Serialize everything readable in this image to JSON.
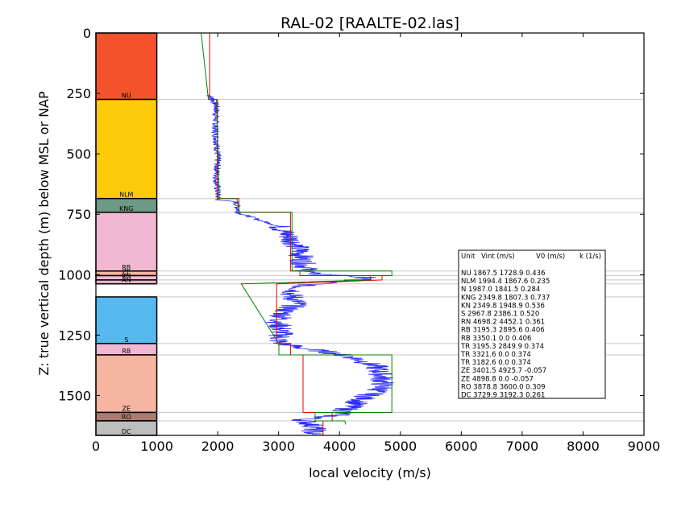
{
  "chart_data": {
    "type": "line",
    "title": "RAL-02 [RAALTE-02.las]",
    "xlabel": "local velocity (m/s)",
    "ylabel": "Z: true vertical depth (m) below MSL or NAP",
    "xlim": [
      0,
      9000
    ],
    "ylim": [
      1665,
      0
    ],
    "x_ticks": [
      "0",
      "1000",
      "2000",
      "3000",
      "4000",
      "5000",
      "6000",
      "7000",
      "8000",
      "9000"
    ],
    "y_ticks": [
      "0",
      "250",
      "500",
      "750",
      "1000",
      "1250",
      "1500"
    ],
    "y_tick_values": [
      0,
      250,
      500,
      750,
      1000,
      1250,
      1500
    ],
    "column_x_range": [
      0,
      1000
    ],
    "stratigraphic_units": [
      {
        "name": "NU",
        "top": 0,
        "base": 275,
        "color": "#f4522a"
      },
      {
        "name": "NLM",
        "top": 275,
        "base": 685,
        "color": "#fecb0a"
      },
      {
        "name": "KNG",
        "top": 685,
        "base": 742,
        "color": "#6d9a85"
      },
      {
        "name": "RB",
        "top": 742,
        "base": 985,
        "color": "#f2b8d3"
      },
      {
        "name": "ZE",
        "top": 985,
        "base": 1004,
        "color": "#f5b5a0"
      },
      {
        "name": "RN",
        "top": 1004,
        "base": 1022,
        "color": "#f2b8d3"
      },
      {
        "name": "AN",
        "top": 1022,
        "base": 1038,
        "color": "#e8b0c8"
      },
      {
        "name": "S",
        "top": 1092,
        "base": 1285,
        "color": "#56b9ef"
      },
      {
        "name": "RB",
        "top": 1285,
        "base": 1332,
        "color": "#f2b8d3"
      },
      {
        "name": "ZE",
        "top": 1332,
        "base": 1570,
        "color": "#f5b5a0"
      },
      {
        "name": "RO",
        "top": 1570,
        "base": 1605,
        "color": "#b07a70"
      },
      {
        "name": "DC",
        "top": 1605,
        "base": 1665,
        "color": "#bdbdbd"
      }
    ],
    "boundary_depths": [
      275,
      685,
      742,
      985,
      1004,
      1022,
      1038,
      1092,
      1285,
      1332,
      1570,
      1605
    ],
    "series": [
      {
        "color": "#2b2bff",
        "kind": "log",
        "points": [
          [
            1860,
            255
          ],
          [
            1980,
            300
          ],
          [
            1960,
            400
          ],
          [
            1990,
            470
          ],
          [
            2000,
            520
          ],
          [
            1980,
            600
          ],
          [
            2010,
            690
          ],
          [
            2300,
            700
          ],
          [
            2350,
            745
          ],
          [
            2700,
            775
          ],
          [
            3000,
            800
          ],
          [
            3200,
            850
          ],
          [
            3350,
            900
          ],
          [
            3400,
            950
          ],
          [
            3500,
            995
          ],
          [
            3800,
            1000
          ],
          [
            4200,
            1005
          ],
          [
            4500,
            1015
          ],
          [
            4200,
            1022
          ],
          [
            3400,
            1045
          ],
          [
            3200,
            1080
          ],
          [
            3300,
            1120
          ],
          [
            3100,
            1150
          ],
          [
            3000,
            1200
          ],
          [
            3050,
            1240
          ],
          [
            3000,
            1280
          ],
          [
            3300,
            1300
          ],
          [
            3800,
            1320
          ],
          [
            4200,
            1340
          ],
          [
            4600,
            1380
          ],
          [
            4700,
            1420
          ],
          [
            4700,
            1470
          ],
          [
            4400,
            1510
          ],
          [
            4100,
            1560
          ],
          [
            4000,
            1580
          ],
          [
            3400,
            1600
          ],
          [
            3600,
            1630
          ],
          [
            3550,
            1660
          ]
        ]
      },
      {
        "color": "#e00000",
        "kind": "interval velocity",
        "points": [
          [
            1867.5,
            0
          ],
          [
            1867.5,
            275
          ],
          [
            1994.4,
            275
          ],
          [
            1994.4,
            685
          ],
          [
            2349.8,
            685
          ],
          [
            2349.8,
            742
          ],
          [
            3195.3,
            742
          ],
          [
            3195.3,
            985
          ],
          [
            3350.1,
            985
          ],
          [
            3350.1,
            1004
          ],
          [
            4698.2,
            1004
          ],
          [
            4698.2,
            1022
          ],
          [
            2967.8,
            1038
          ],
          [
            2967.8,
            1285
          ],
          [
            3195.3,
            1285
          ],
          [
            3195.3,
            1332
          ],
          [
            3401.5,
            1332
          ],
          [
            3401.5,
            1570
          ],
          [
            3878.8,
            1570
          ],
          [
            3878.8,
            1605
          ],
          [
            3729.9,
            1605
          ],
          [
            3729.9,
            1665
          ]
        ]
      },
      {
        "color": "#008000",
        "kind": "linear velocity model",
        "points": [
          [
            1728.9,
            0
          ],
          [
            1848,
            275
          ],
          [
            1980,
            275
          ],
          [
            2025,
            685
          ],
          [
            2313,
            685
          ],
          [
            2355,
            742
          ],
          [
            3220,
            742
          ],
          [
            3220,
            985
          ],
          [
            4860,
            985
          ],
          [
            4860,
            1004
          ],
          [
            4500,
            1004
          ],
          [
            4513,
            1022
          ],
          [
            2386,
            1038
          ],
          [
            3005,
            1285
          ],
          [
            3005,
            1332
          ],
          [
            4860,
            1332
          ],
          [
            4860,
            1570
          ],
          [
            3600,
            1570
          ],
          [
            3600,
            1605
          ],
          [
            4090,
            1605
          ],
          [
            4100,
            1620
          ]
        ]
      }
    ],
    "legend": {
      "position": "right",
      "header": [
        "Unit",
        "Vint (m/s)",
        "V0 (m/s)",
        "k (1/s)"
      ],
      "rows": [
        "NU      1867.5   1728.9   0.436",
        "NLM      1994.4   1867.6   0.235",
        "N        1987.0   1841.5   0.284",
        "KNG      2349.8   1807.3   0.737",
        "KN       2349.8   1948.9   0.536",
        "S        2967.8   2386.1   0.520",
        "RN       4698.2   4452.1   0.361",
        "RB       3195.3   2895.6   0.406",
        "RB       3350.1   0.0      0.406",
        "TR       3195.3   2849.9   0.374",
        "TR       3321.6   0.0      0.374",
        "TR       3182.6   0.0      0.374",
        "ZE       3401.5   4925.7   -0.057",
        "ZE       4898.8   0.0      -0.057",
        "RO       3878.8   3600.0   0.309",
        "DC       3729.9   3192.3   0.261"
      ]
    }
  }
}
